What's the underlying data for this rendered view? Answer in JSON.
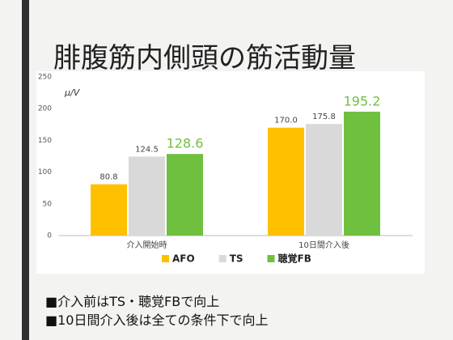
{
  "chart_data": {
    "type": "bar",
    "title": "腓腹筋内側頭の筋活動量",
    "ylabel": "μ/V",
    "categories": [
      "介入開始時",
      "10日間介入後"
    ],
    "series": [
      {
        "name": "AFO",
        "color": "#ffc000",
        "values": [
          80.8,
          170.0
        ],
        "value_labels": [
          "80.8",
          "170.0"
        ]
      },
      {
        "name": "TS",
        "color": "#d9d9d9",
        "values": [
          124.5,
          175.8
        ],
        "value_labels": [
          "124.5",
          "175.8"
        ]
      },
      {
        "name": "聴覚FB",
        "color": "#70c040",
        "values": [
          128.6,
          195.2
        ],
        "value_labels": [
          "128.6",
          "195.2"
        ]
      }
    ],
    "ylim": [
      0,
      250
    ],
    "yticks": [
      0,
      50,
      100,
      150,
      200,
      250
    ],
    "grid": false,
    "legend": "bottom"
  },
  "bullets": [
    "■介入前はTS・聴覚FBで向上",
    "■10日間介入後は全ての条件下で向上"
  ]
}
